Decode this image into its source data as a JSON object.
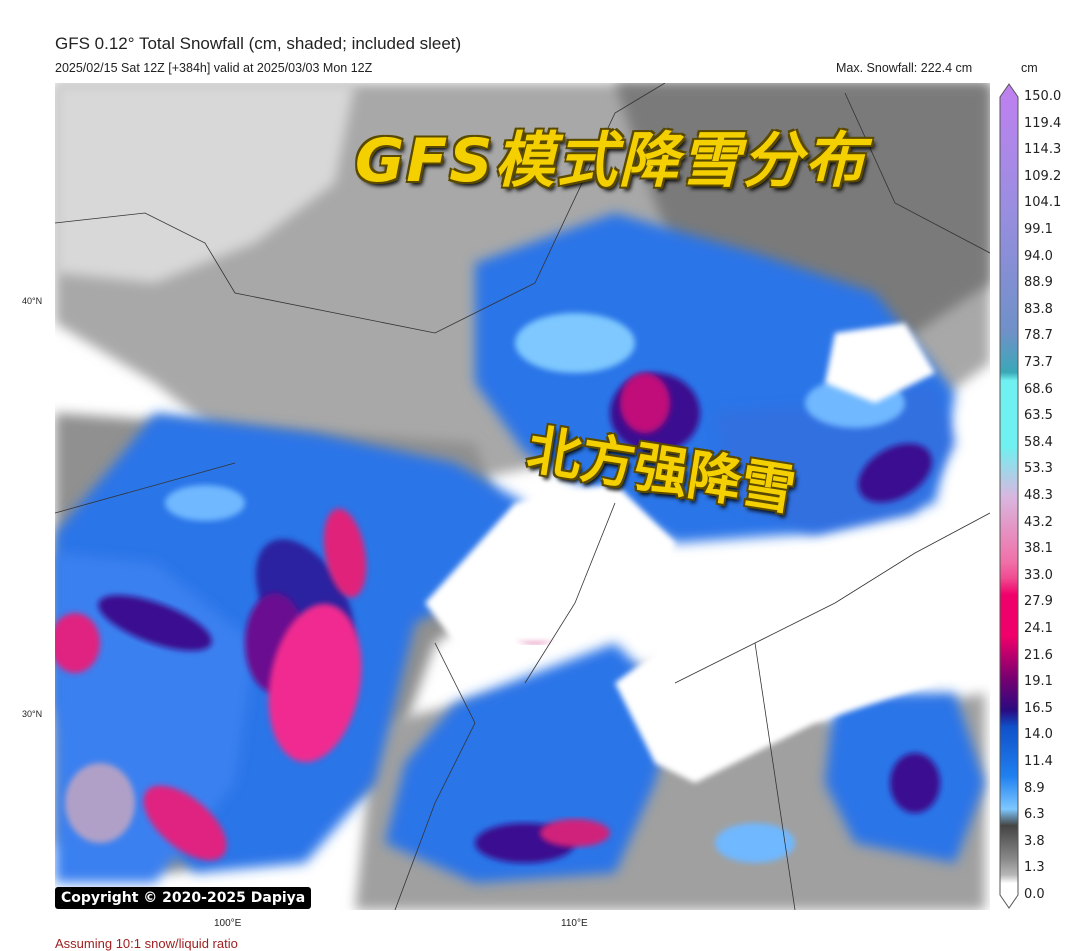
{
  "header": {
    "title": "GFS 0.12° Total Snowfall (cm, shaded; included sleet)",
    "subtitle": "2025/02/15 Sat 12Z [+384h] valid at 2025/03/03 Mon 12Z",
    "max_snowfall": "Max. Snowfall: 222.4 cm",
    "unit": "cm"
  },
  "map": {
    "lat_labels": [
      "40°N",
      "30°N"
    ],
    "lon_labels": [
      "100°E",
      "110°E"
    ],
    "overlay_title": "GFS模式降雪分布",
    "overlay_caption": "北方强降雪",
    "copyright": "Copyright © 2020-2025 Dapiya",
    "footnote": "Assuming 10:1 snow/liquid ratio"
  },
  "colorbar": {
    "ticks": [
      "150.0",
      "119.4",
      "114.3",
      "109.2",
      "104.1",
      "99.1",
      "94.0",
      "88.9",
      "83.8",
      "78.7",
      "73.7",
      "68.6",
      "63.5",
      "58.4",
      "53.3",
      "48.3",
      "43.2",
      "38.1",
      "33.0",
      "27.9",
      "24.1",
      "21.6",
      "19.1",
      "16.5",
      "14.0",
      "11.4",
      "8.9",
      "6.3",
      "3.8",
      "1.3",
      "0.0"
    ],
    "colors": {
      "none": "#ffffff",
      "light": "#b8b8b8",
      "dark": "#444444",
      "light_blue": "#7ec8ff",
      "blue": "#1e6be0",
      "navy": "#2a0a80",
      "purple": "#7a0070",
      "magenta": "#f0006a",
      "pink": "#f070a8",
      "lavender_pink": "#d8b8e0",
      "cyan": "#70f0f0",
      "teal": "#3aa8b8",
      "steel_blue": "#7090c8",
      "violet": "#c080f0"
    }
  }
}
